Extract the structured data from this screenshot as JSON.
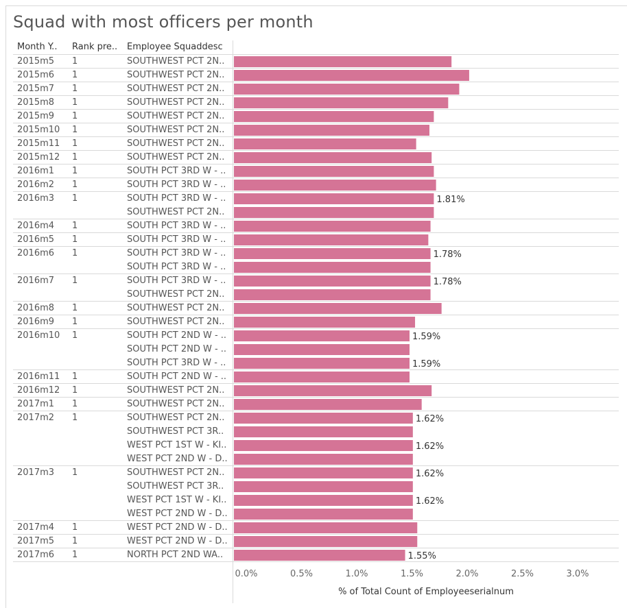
{
  "title": "Squad with most officers per month",
  "colors": {
    "bar": "#d57496",
    "grid": "#d9d9d9"
  },
  "headers": [
    "Month Y..",
    "Rank pre..",
    "Employee Squaddesc"
  ],
  "chart_data": {
    "type": "bar",
    "orientation": "horizontal",
    "xlabel": "% of Total Count of Employeeserialnum",
    "xlim": [
      0,
      0.035
    ],
    "xticks": [
      "0.0%",
      "0.5%",
      "1.0%",
      "1.5%",
      "2.0%",
      "2.5%",
      "3.0%"
    ],
    "tick_values": [
      0,
      0.005,
      0.01,
      0.015,
      0.02,
      0.025,
      0.03
    ],
    "rows": [
      {
        "month": "2015m5",
        "rank": "1",
        "squad": "SOUTHWEST PCT 2N..",
        "value": 0.0197,
        "label": ""
      },
      {
        "month": "2015m6",
        "rank": "1",
        "squad": "SOUTHWEST PCT 2N..",
        "value": 0.0213,
        "label": ""
      },
      {
        "month": "2015m7",
        "rank": "1",
        "squad": "SOUTHWEST PCT 2N..",
        "value": 0.0204,
        "label": ""
      },
      {
        "month": "2015m8",
        "rank": "1",
        "squad": "SOUTHWEST PCT 2N..",
        "value": 0.0194,
        "label": ""
      },
      {
        "month": "2015m9",
        "rank": "1",
        "squad": "SOUTHWEST PCT 2N..",
        "value": 0.0181,
        "label": ""
      },
      {
        "month": "2015m10",
        "rank": "1",
        "squad": "SOUTHWEST PCT 2N..",
        "value": 0.0177,
        "label": ""
      },
      {
        "month": "2015m11",
        "rank": "1",
        "squad": "SOUTHWEST PCT 2N..",
        "value": 0.0165,
        "label": ""
      },
      {
        "month": "2015m12",
        "rank": "1",
        "squad": "SOUTHWEST PCT 2N..",
        "value": 0.0179,
        "label": ""
      },
      {
        "month": "2016m1",
        "rank": "1",
        "squad": "SOUTH PCT 3RD W - ..",
        "value": 0.0181,
        "label": ""
      },
      {
        "month": "2016m2",
        "rank": "1",
        "squad": "SOUTH PCT 3RD W - ..",
        "value": 0.0183,
        "label": ""
      },
      {
        "month": "2016m3",
        "rank": "1",
        "squad": "SOUTH PCT 3RD W - ..",
        "value": 0.0181,
        "label": "1.81%"
      },
      {
        "month": "",
        "rank": "",
        "squad": "SOUTHWEST PCT 2N..",
        "value": 0.0181,
        "label": ""
      },
      {
        "month": "2016m4",
        "rank": "1",
        "squad": "SOUTH PCT 3RD W - ..",
        "value": 0.0178,
        "label": ""
      },
      {
        "month": "2016m5",
        "rank": "1",
        "squad": "SOUTH PCT 3RD W - ..",
        "value": 0.0176,
        "label": ""
      },
      {
        "month": "2016m6",
        "rank": "1",
        "squad": "SOUTH PCT 3RD W - ..",
        "value": 0.0178,
        "label": "1.78%"
      },
      {
        "month": "",
        "rank": "",
        "squad": "SOUTH PCT 3RD W - ..",
        "value": 0.0178,
        "label": ""
      },
      {
        "month": "2016m7",
        "rank": "1",
        "squad": "SOUTH PCT 3RD W - ..",
        "value": 0.0178,
        "label": "1.78%"
      },
      {
        "month": "",
        "rank": "",
        "squad": "SOUTHWEST PCT 2N..",
        "value": 0.0178,
        "label": ""
      },
      {
        "month": "2016m8",
        "rank": "1",
        "squad": "SOUTHWEST PCT 2N..",
        "value": 0.0188,
        "label": ""
      },
      {
        "month": "2016m9",
        "rank": "1",
        "squad": "SOUTHWEST PCT 2N..",
        "value": 0.0164,
        "label": ""
      },
      {
        "month": "2016m10",
        "rank": "1",
        "squad": "SOUTH PCT 2ND W - ..",
        "value": 0.0159,
        "label": "1.59%"
      },
      {
        "month": "",
        "rank": "",
        "squad": "SOUTH PCT 2ND W - ..",
        "value": 0.0159,
        "label": ""
      },
      {
        "month": "",
        "rank": "",
        "squad": "SOUTH PCT 3RD W - ..",
        "value": 0.0159,
        "label": "1.59%"
      },
      {
        "month": "2016m11",
        "rank": "1",
        "squad": "SOUTH PCT 2ND W - ..",
        "value": 0.0159,
        "label": ""
      },
      {
        "month": "2016m12",
        "rank": "1",
        "squad": "SOUTHWEST PCT 2N..",
        "value": 0.0179,
        "label": ""
      },
      {
        "month": "2017m1",
        "rank": "1",
        "squad": "SOUTHWEST PCT 2N..",
        "value": 0.017,
        "label": ""
      },
      {
        "month": "2017m2",
        "rank": "1",
        "squad": "SOUTHWEST PCT 2N..",
        "value": 0.0162,
        "label": "1.62%"
      },
      {
        "month": "",
        "rank": "",
        "squad": "SOUTHWEST PCT 3R..",
        "value": 0.0162,
        "label": ""
      },
      {
        "month": "",
        "rank": "",
        "squad": "WEST PCT 1ST W - KI..",
        "value": 0.0162,
        "label": "1.62%"
      },
      {
        "month": "",
        "rank": "",
        "squad": "WEST PCT 2ND W - D..",
        "value": 0.0162,
        "label": ""
      },
      {
        "month": "2017m3",
        "rank": "1",
        "squad": "SOUTHWEST PCT 2N..",
        "value": 0.0162,
        "label": "1.62%"
      },
      {
        "month": "",
        "rank": "",
        "squad": "SOUTHWEST PCT 3R..",
        "value": 0.0162,
        "label": ""
      },
      {
        "month": "",
        "rank": "",
        "squad": "WEST PCT 1ST W - KI..",
        "value": 0.0162,
        "label": "1.62%"
      },
      {
        "month": "",
        "rank": "",
        "squad": "WEST PCT 2ND W - D..",
        "value": 0.0162,
        "label": ""
      },
      {
        "month": "2017m4",
        "rank": "1",
        "squad": "WEST PCT 2ND W - D..",
        "value": 0.0166,
        "label": ""
      },
      {
        "month": "2017m5",
        "rank": "1",
        "squad": "WEST PCT 2ND W - D..",
        "value": 0.0166,
        "label": ""
      },
      {
        "month": "2017m6",
        "rank": "1",
        "squad": "NORTH PCT 2ND WA..",
        "value": 0.0155,
        "label": "1.55%"
      }
    ]
  }
}
